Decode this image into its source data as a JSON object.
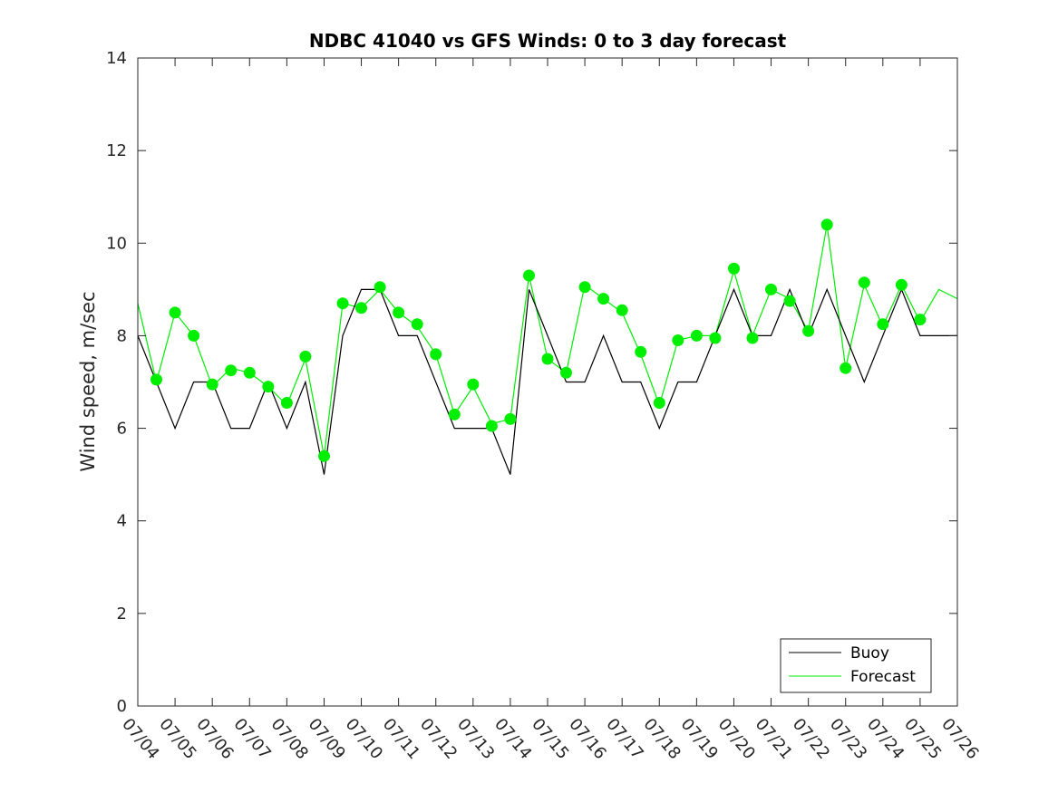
{
  "chart_data": {
    "type": "line",
    "title": "NDBC 41040 vs GFS Winds: 0 to 3 day forecast",
    "ylabel": "Wind speed, m/sec",
    "xlabel": "",
    "ylim": [
      0,
      14
    ],
    "yticks": [
      0,
      2,
      4,
      6,
      8,
      10,
      12,
      14
    ],
    "xlim": [
      "07/04",
      "07/26"
    ],
    "xtick_labels": [
      "07/04",
      "07/05",
      "07/06",
      "07/07",
      "07/08",
      "07/09",
      "07/10",
      "07/11",
      "07/12",
      "07/13",
      "07/14",
      "07/15",
      "07/16",
      "07/17",
      "07/18",
      "07/19",
      "07/20",
      "07/21",
      "07/22",
      "07/23",
      "07/24",
      "07/25",
      "07/26"
    ],
    "grid": false,
    "legend": {
      "position": "bottom-right",
      "entries": [
        "Buoy",
        "Forecast"
      ]
    },
    "colors": {
      "buoy": "#000000",
      "forecast": "#00ee00"
    },
    "series": [
      {
        "name": "Buoy",
        "color": "#000000",
        "x": [
          "07/04",
          "07/04 12:00",
          "07/05",
          "07/05 12:00",
          "07/06",
          "07/06 12:00",
          "07/07",
          "07/07 12:00",
          "07/08",
          "07/08 12:00",
          "07/09",
          "07/09 12:00",
          "07/10",
          "07/10 12:00",
          "07/11",
          "07/11 12:00",
          "07/12",
          "07/12 12:00",
          "07/13",
          "07/13 12:00",
          "07/14",
          "07/14 12:00",
          "07/15",
          "07/15 12:00",
          "07/16",
          "07/16 12:00",
          "07/17",
          "07/17 12:00",
          "07/18",
          "07/18 12:00",
          "07/19",
          "07/19 12:00",
          "07/20",
          "07/20 12:00",
          "07/21",
          "07/21 12:00",
          "07/22",
          "07/22 12:00",
          "07/23",
          "07/23 12:00",
          "07/24",
          "07/24 12:00",
          "07/25",
          "07/25 12:00",
          "07/26"
        ],
        "y": [
          8,
          7,
          6,
          7,
          7,
          6,
          6,
          7,
          6,
          7,
          5,
          8,
          9,
          9,
          8,
          8,
          7,
          6,
          6,
          6,
          5,
          9,
          8,
          7,
          7,
          8,
          7,
          7,
          6,
          7,
          7,
          8,
          9,
          8,
          8,
          9,
          8,
          9,
          8,
          7,
          8,
          9,
          8,
          8,
          8
        ]
      },
      {
        "name": "Forecast",
        "color": "#00ee00",
        "x": [
          "07/04",
          "07/04 12:00",
          "07/05",
          "07/05 12:00",
          "07/06",
          "07/06 12:00",
          "07/07",
          "07/07 12:00",
          "07/08",
          "07/08 12:00",
          "07/09",
          "07/09 12:00",
          "07/10",
          "07/10 12:00",
          "07/11",
          "07/11 12:00",
          "07/12",
          "07/12 12:00",
          "07/13",
          "07/13 12:00",
          "07/14",
          "07/14 12:00",
          "07/15",
          "07/15 12:00",
          "07/16",
          "07/16 12:00",
          "07/17",
          "07/17 12:00",
          "07/18",
          "07/18 12:00",
          "07/19",
          "07/19 12:00",
          "07/20",
          "07/20 12:00",
          "07/21",
          "07/21 12:00",
          "07/22",
          "07/22 12:00",
          "07/23",
          "07/23 12:00",
          "07/24",
          "07/24 12:00",
          "07/25",
          "07/25 12:00",
          "07/26"
        ],
        "y": [
          8.7,
          7.0,
          8.5,
          8.0,
          6.9,
          7.3,
          7.2,
          6.9,
          6.5,
          7.5,
          5.4,
          8.7,
          8.6,
          9.0,
          8.5,
          8.2,
          7.6,
          6.3,
          6.9,
          6.1,
          6.2,
          9.3,
          7.5,
          7.2,
          9.1,
          8.8,
          8.5,
          7.6,
          6.5,
          7.9,
          8.0,
          8.0,
          9.4,
          8.0,
          9.0,
          8.8,
          8.1,
          10.4,
          7.3,
          9.1,
          8.2,
          9.1,
          8.3,
          9.0,
          8.8
        ]
      }
    ],
    "markers": {
      "color": "#00ee00",
      "x": [
        "07/04 12:00",
        "07/05",
        "07/05 12:00",
        "07/06",
        "07/06 12:00",
        "07/07",
        "07/07 12:00",
        "07/08",
        "07/08 12:00",
        "07/09",
        "07/09 12:00",
        "07/10",
        "07/10 12:00",
        "07/11",
        "07/11 12:00",
        "07/12",
        "07/12 12:00",
        "07/13",
        "07/13 12:00",
        "07/14",
        "07/14 12:00",
        "07/15",
        "07/15 12:00",
        "07/16",
        "07/16 12:00",
        "07/17",
        "07/17 12:00",
        "07/18",
        "07/18 12:00",
        "07/19",
        "07/19 12:00",
        "07/20",
        "07/20 12:00",
        "07/21",
        "07/21 12:00",
        "07/22",
        "07/22 12:00",
        "07/23",
        "07/23 12:00",
        "07/24",
        "07/24 12:00",
        "07/25"
      ],
      "y": [
        7.05,
        8.5,
        8.0,
        6.95,
        7.25,
        7.2,
        6.9,
        6.55,
        7.55,
        5.4,
        8.7,
        8.6,
        9.05,
        8.5,
        8.25,
        7.6,
        6.3,
        6.95,
        6.05,
        6.2,
        9.3,
        7.5,
        7.2,
        9.05,
        8.8,
        8.55,
        7.65,
        6.55,
        7.9,
        8.0,
        7.95,
        9.45,
        7.95,
        9.0,
        8.75,
        8.1,
        10.4,
        7.3,
        9.15,
        8.25,
        9.1,
        8.35
      ]
    }
  }
}
